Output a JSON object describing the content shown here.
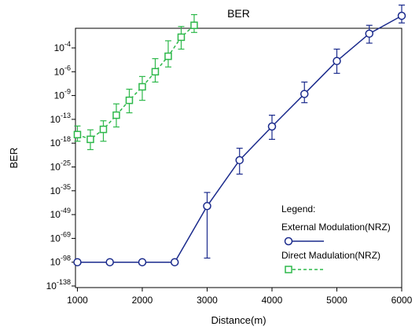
{
  "chart_data": {
    "type": "line",
    "title": "BER",
    "xlabel": "Distance(m)",
    "ylabel": "BER",
    "xlim": [
      970,
      6000
    ],
    "xticks": [
      1000,
      2000,
      3000,
      4000,
      5000,
      6000
    ],
    "yticks": [
      {
        "base": "10",
        "exp": "-4"
      },
      {
        "base": "10",
        "exp": "-6"
      },
      {
        "base": "10",
        "exp": "-9"
      },
      {
        "base": "10",
        "exp": "-13"
      },
      {
        "base": "10",
        "exp": "-18"
      },
      {
        "base": "10",
        "exp": "-25"
      },
      {
        "base": "10",
        "exp": "-35"
      },
      {
        "base": "10",
        "exp": "-49"
      },
      {
        "base": "10",
        "exp": "-69"
      },
      {
        "base": "10",
        "exp": "-98"
      },
      {
        "base": "10",
        "exp": "-138"
      }
    ],
    "legend": {
      "title": "Legend:",
      "placement": "bottom-right"
    },
    "series": [
      {
        "name": "External Modulation(NRZ)",
        "color": "#1a2a8c",
        "marker": "circle",
        "line": "solid",
        "x": [
          1000,
          1500,
          2000,
          2500,
          3000,
          3500,
          4000,
          4500,
          5000,
          5500,
          6000
        ],
        "log10_ber": [
          -98,
          -98,
          -98,
          -98,
          -44,
          -23,
          -14.5,
          -8.8,
          -5.1,
          -2.8,
          -1.3
        ],
        "error_log10_high": [
          -98,
          -98,
          -98,
          -98,
          -36,
          -19.5,
          -12.3,
          -7.3,
          -4.1,
          -2.1,
          -0.4
        ],
        "error_log10_low": [
          -98,
          -98,
          -98,
          -98,
          -93,
          -28,
          -17.2,
          -10.2,
          -6.2,
          -3.6,
          -1.9
        ]
      },
      {
        "name": "Direct Madulation(NRZ)",
        "color": "#2db84a",
        "marker": "square",
        "line": "dashed",
        "x": [
          1000,
          1200,
          1400,
          1600,
          1800,
          2000,
          2200,
          2400,
          2600,
          2800
        ],
        "log10_ber": [
          -16.2,
          -17.2,
          -15.1,
          -12.3,
          -9.8,
          -7.9,
          -6.0,
          -4.7,
          -3.1,
          -2.1
        ],
        "error_log10_high": [
          -14.4,
          -15.2,
          -13.3,
          -10.4,
          -8.2,
          -6.6,
          -4.9,
          -3.4,
          -2.2,
          -1.2
        ],
        "error_log10_low": [
          -17.6,
          -19.9,
          -17.6,
          -14.6,
          -11.9,
          -9.8,
          -7.3,
          -5.6,
          -4.1,
          -2.7
        ]
      }
    ]
  }
}
